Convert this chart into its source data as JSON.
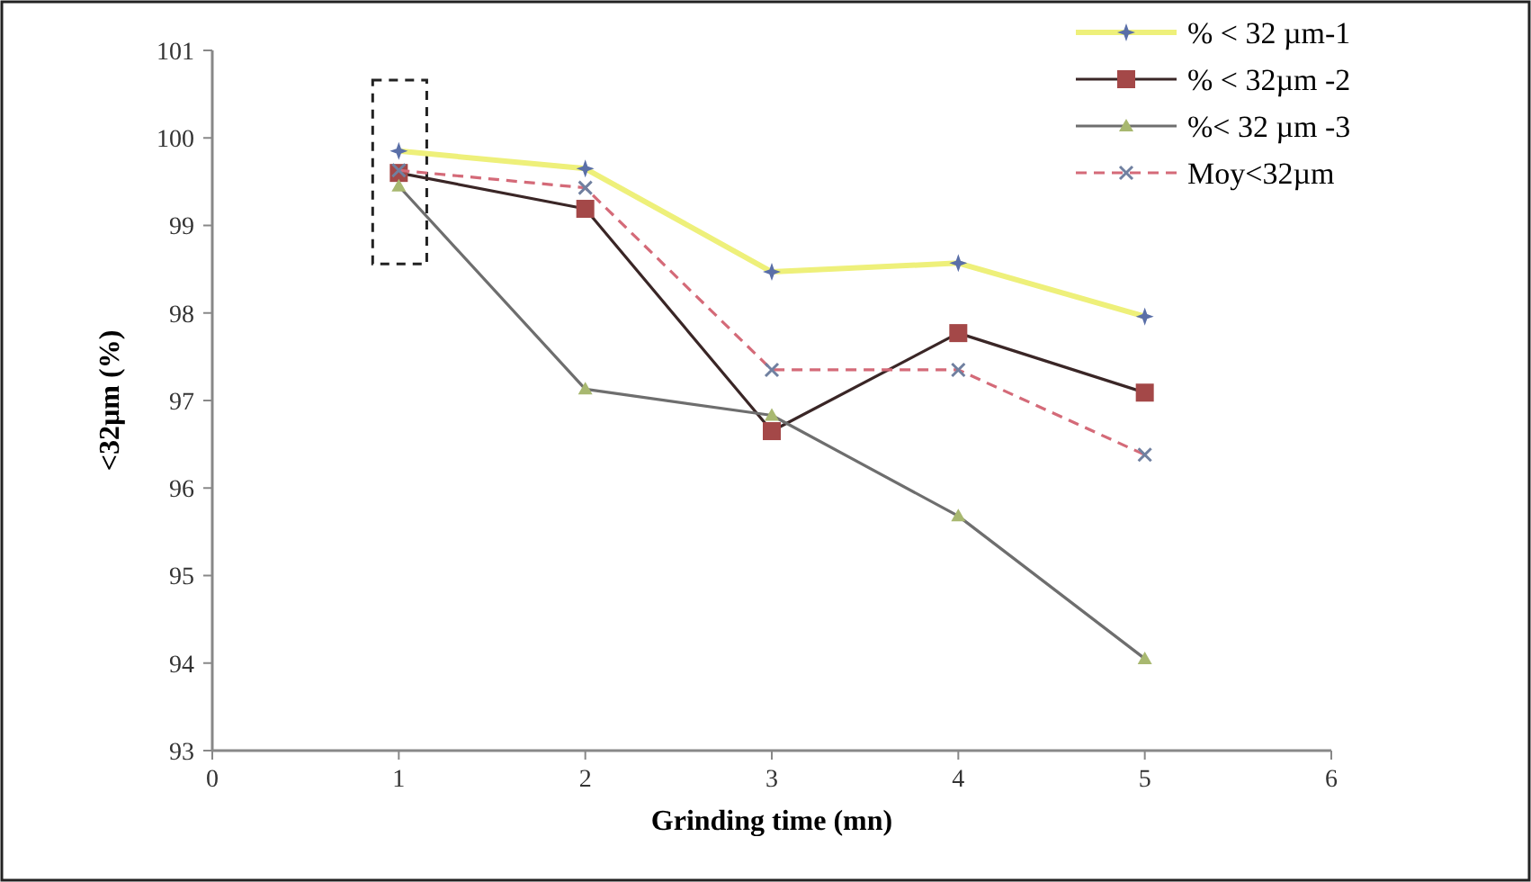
{
  "chart_data": {
    "type": "line",
    "xlabel": "Grinding time (mn)",
    "ylabel": "<32µm (%)",
    "x": [
      1,
      2,
      3,
      4,
      5
    ],
    "xlim": [
      0,
      6
    ],
    "xticks": [
      0,
      1,
      2,
      3,
      4,
      5,
      6
    ],
    "ylim": [
      93,
      101
    ],
    "yticks": [
      93,
      94,
      95,
      96,
      97,
      98,
      99,
      100,
      101
    ],
    "grid": false,
    "legend": "top right",
    "series": [
      {
        "name": "% < 32 µm-1",
        "color": "#eef07a",
        "values": [
          99.85,
          99.65,
          98.47,
          98.57,
          97.96
        ],
        "marker": "star",
        "line_style": "solid"
      },
      {
        "name": "% < 32µm -2",
        "color": "#3a2626",
        "values": [
          99.6,
          99.19,
          96.65,
          97.77,
          97.09
        ],
        "marker": "square",
        "line_style": "solid"
      },
      {
        "name": "%< 32 µm -3",
        "color": "#6e6e6e",
        "values": [
          99.45,
          97.13,
          96.83,
          95.68,
          94.05
        ],
        "marker": "triangle",
        "line_style": "solid"
      },
      {
        "name": "Moy<32µm",
        "color": "#d46a78",
        "values": [
          99.63,
          99.43,
          97.35,
          97.35,
          96.38
        ],
        "marker": "cross",
        "line_style": "dashed"
      }
    ]
  }
}
